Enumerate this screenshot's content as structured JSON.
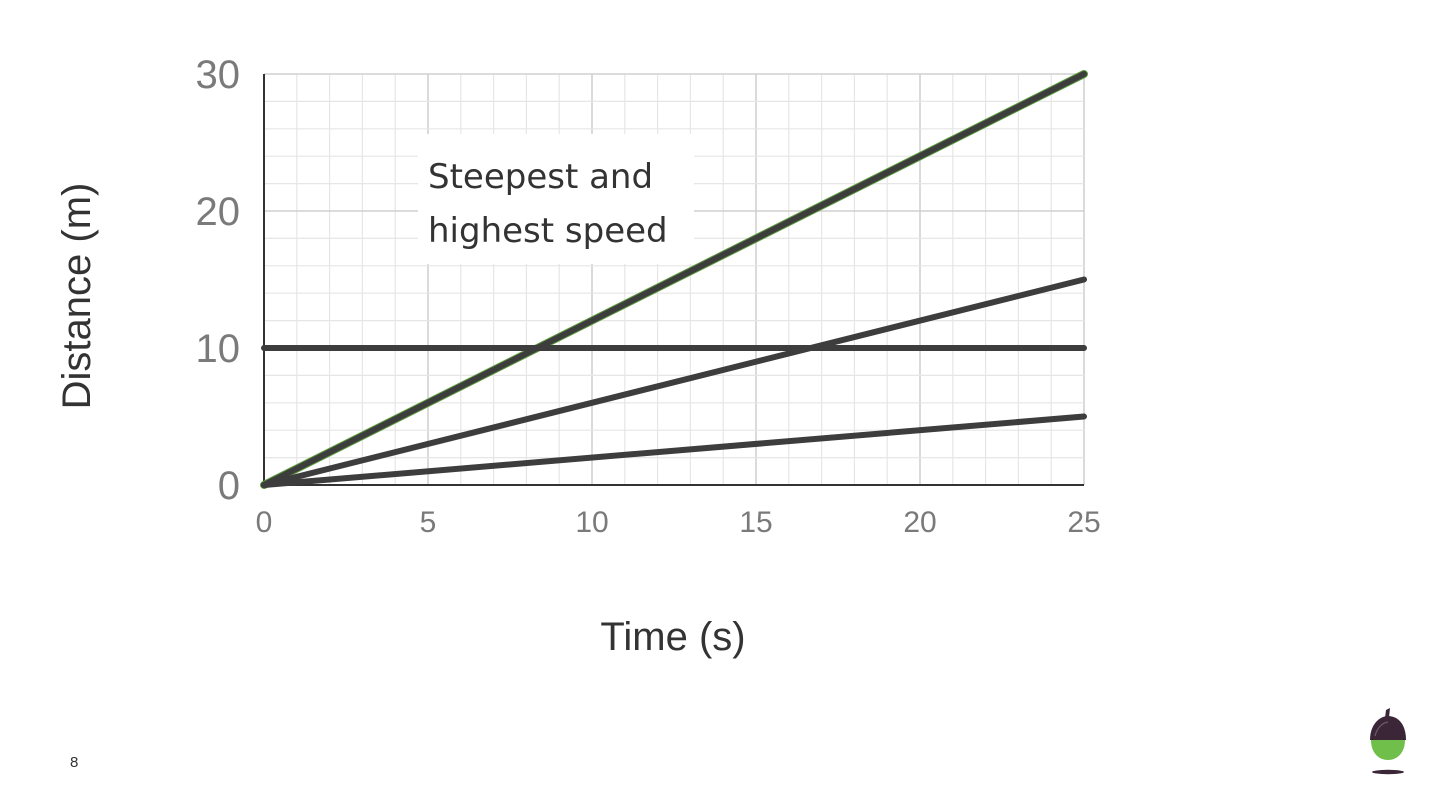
{
  "slide": {
    "page_number": "8"
  },
  "colors": {
    "line": "#3d3d3d",
    "steepest_line_highlight": "#5a9a3a",
    "grid_minor": "#e6e6e6",
    "grid_major": "#d0d0d0",
    "axis": "#333333",
    "tick_label": "#7a7a7a",
    "logo_cap": "#3b2638",
    "logo_body": "#6fbf4a"
  },
  "logo": {
    "icon": "acorn-logo-icon"
  },
  "chart_data": {
    "type": "line",
    "title": "",
    "xlabel": "Time (s)",
    "ylabel": "Distance (m)",
    "xlim": [
      0,
      25
    ],
    "ylim": [
      0,
      30
    ],
    "x_ticks": [
      "0",
      "5",
      "10",
      "15",
      "20",
      "25"
    ],
    "y_ticks": [
      "0",
      "10",
      "20",
      "30"
    ],
    "grid": true,
    "legend": "none",
    "series": [
      {
        "x": [
          0,
          25
        ],
        "y": [
          0,
          30
        ]
      },
      {
        "x": [
          0,
          25
        ],
        "y": [
          0,
          15
        ]
      },
      {
        "x": [
          0,
          25
        ],
        "y": [
          0,
          5
        ]
      },
      {
        "x": [
          0,
          25
        ],
        "y": [
          10,
          10
        ]
      }
    ],
    "annotations": [
      {
        "lines": [
          "Steepest and",
          "highest speed"
        ]
      }
    ]
  }
}
